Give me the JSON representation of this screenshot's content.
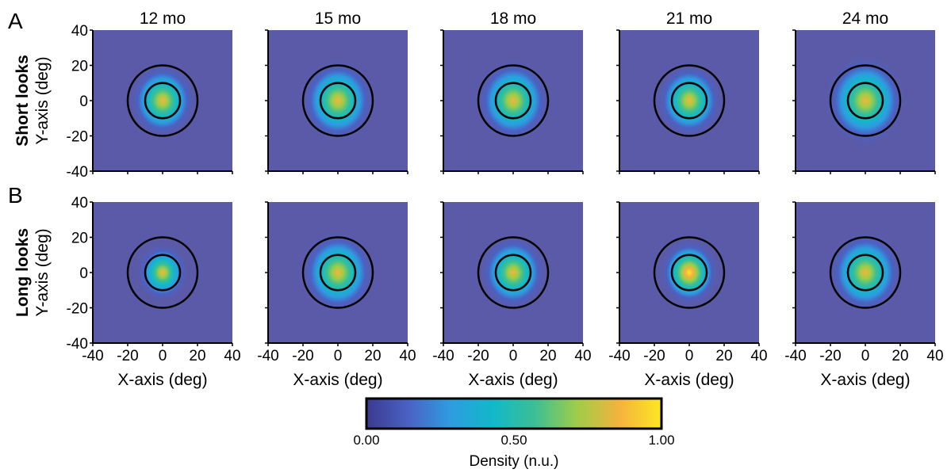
{
  "chart_data": {
    "type": "heatmap",
    "panel_letters": [
      "A",
      "B"
    ],
    "row_labels": [
      "Short looks",
      "Long looks"
    ],
    "columns": [
      "12 mo",
      "15 mo",
      "18 mo",
      "21 mo",
      "24 mo"
    ],
    "xlabel": "X-axis (deg)",
    "ylabel": "Y-axis (deg)",
    "xlim": [
      -40,
      40
    ],
    "ylim": [
      -40,
      40
    ],
    "xticks": [
      "-40",
      "-20",
      "0",
      "20",
      "40"
    ],
    "yticks": [
      "40",
      "20",
      "0",
      "-20",
      "-40"
    ],
    "circle_radii_deg": [
      10,
      20
    ],
    "panels": [
      [
        {
          "spread_deg": 9,
          "peak": 0.9
        },
        {
          "spread_deg": 10,
          "peak": 0.8
        },
        {
          "spread_deg": 10,
          "peak": 0.85
        },
        {
          "spread_deg": 9,
          "peak": 0.85
        },
        {
          "spread_deg": 11,
          "peak": 0.9
        }
      ],
      [
        {
          "spread_deg": 7,
          "peak": 0.9
        },
        {
          "spread_deg": 10,
          "peak": 0.8
        },
        {
          "spread_deg": 9,
          "peak": 0.85
        },
        {
          "spread_deg": 8,
          "peak": 1.0
        },
        {
          "spread_deg": 10,
          "peak": 0.85
        }
      ]
    ],
    "colorbar": {
      "label": "Density (n.u.)",
      "ticks": [
        "0.00",
        "0.50",
        "1.00"
      ],
      "range": [
        0,
        1
      ],
      "colors": [
        "#3b3a8f",
        "#4a62c4",
        "#2d9de0",
        "#12b8c9",
        "#3bbf94",
        "#9fcd48",
        "#f4b33d",
        "#fde725"
      ]
    },
    "background_color": "#5b5aa8",
    "circle_color": "#000000"
  }
}
